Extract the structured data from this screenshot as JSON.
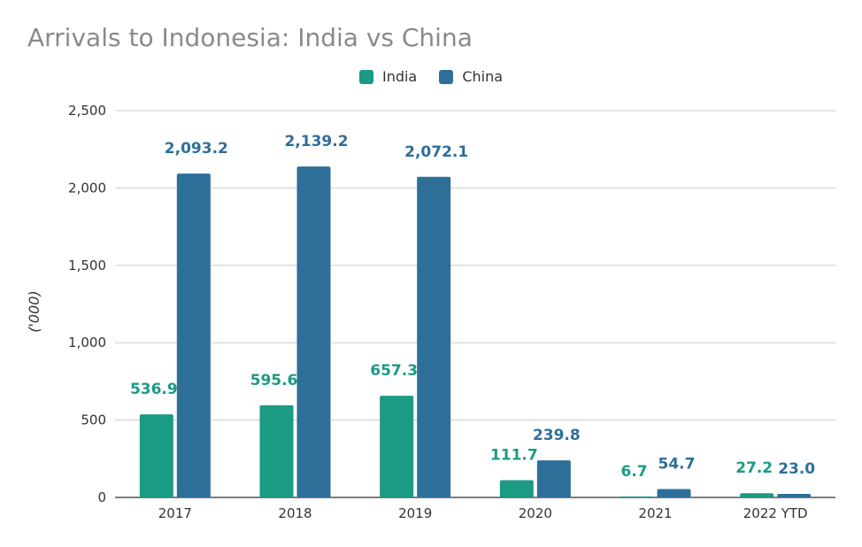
{
  "chart_data": {
    "type": "bar",
    "title": "Arrivals to Indonesia: India vs China",
    "xlabel": "",
    "ylabel": "('000)",
    "ylim": [
      0,
      2500
    ],
    "yticks": [
      0,
      500,
      1000,
      1500,
      2000,
      2500
    ],
    "ytick_labels": [
      "0",
      "500",
      "1,000",
      "1,500",
      "2,000",
      "2,500"
    ],
    "grid": true,
    "legend_position": "top-center",
    "categories": [
      "2017",
      "2018",
      "2019",
      "2020",
      "2021",
      "2022 YTD"
    ],
    "series": [
      {
        "name": "India",
        "color": "#1b9a84",
        "values": [
          536.9,
          595.6,
          657.3,
          111.7,
          6.7,
          27.2
        ],
        "labels": [
          "536.9",
          "595.6",
          "657.3",
          "111.7",
          "6.7",
          "27.2"
        ]
      },
      {
        "name": "China",
        "color": "#2e6f9a",
        "values": [
          2093.2,
          2139.2,
          2072.1,
          239.8,
          54.7,
          23.0
        ],
        "labels": [
          "2,093.2",
          "2,139.2",
          "2,072.1",
          "239.8",
          "54.7",
          "23.0"
        ]
      }
    ]
  }
}
